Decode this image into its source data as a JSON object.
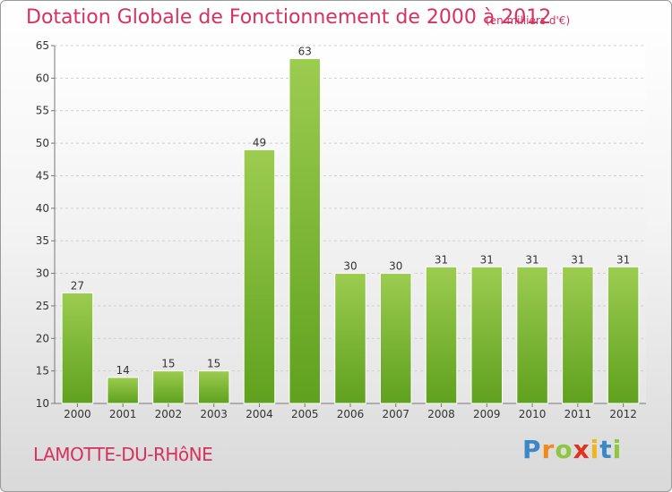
{
  "chart_data": {
    "type": "bar",
    "title": "Dotation Globale de Fonctionnement de 2000 à 2012",
    "subtitle": "(en milliers d'€)",
    "categories": [
      "2000",
      "2001",
      "2002",
      "2003",
      "2004",
      "2005",
      "2006",
      "2007",
      "2008",
      "2009",
      "2010",
      "2011",
      "2012"
    ],
    "values": [
      27,
      14,
      15,
      15,
      49,
      63,
      30,
      30,
      31,
      31,
      31,
      31,
      31
    ],
    "ylim": [
      10,
      65
    ],
    "yticks": [
      10,
      15,
      20,
      25,
      30,
      35,
      40,
      45,
      50,
      55,
      60,
      65
    ],
    "xlabel": "",
    "ylabel": "",
    "grid": true,
    "bar_color": "#7cb82f",
    "bar_highlight": "#9ccc50"
  },
  "commune": "LAMOTTE-DU-RHôNE",
  "logo": {
    "letters": [
      "P",
      "r",
      "o",
      "x",
      "i",
      "t",
      "i"
    ],
    "colors": [
      "#3a88c8",
      "#f08a1c",
      "#8dc63f",
      "#e2311d",
      "#f0b41c",
      "#3a88c8",
      "#8dc63f"
    ]
  }
}
